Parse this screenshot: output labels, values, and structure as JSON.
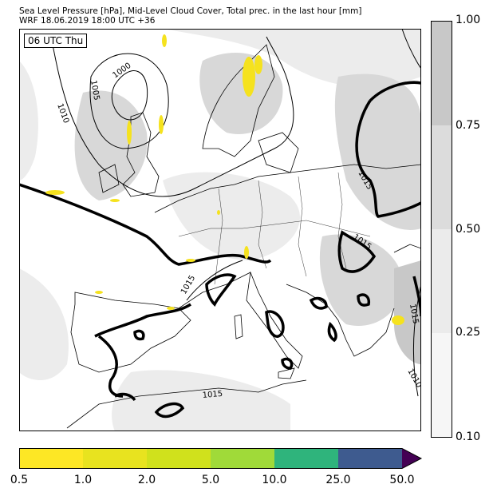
{
  "header": {
    "line1": "Sea Level Pressure [hPa], Mid-Level Cloud Cover, Total prec. in the last hour [mm]",
    "line2": "WRF 18.06.2019 18:00 UTC +36"
  },
  "map": {
    "time_label": "06 UTC Thu",
    "isobar_labels": [
      "1000",
      "1005",
      "1010",
      "1015",
      "1015",
      "1015",
      "1015",
      "1015",
      "1010"
    ],
    "colors": {
      "cloud_light": "#ececec",
      "cloud_mid": "#d8d8d8",
      "cloud_dark": "#c8c8c8",
      "precip": "#f5e21e",
      "isobar": "#000000",
      "coast": "#000000"
    }
  },
  "cloud_colorbar": {
    "ticks": [
      "1.00",
      "0.75",
      "0.50",
      "0.25",
      "0.10"
    ],
    "colors": [
      "#c8c8c8",
      "#dcdcdc",
      "#ebebeb",
      "#f6f6f6"
    ]
  },
  "precip_colorbar": {
    "ticks": [
      "0.5",
      "1.0",
      "2.0",
      "5.0",
      "10.0",
      "25.0",
      "50.0"
    ],
    "colors": [
      "#fde725",
      "#e8e31f",
      "#d0e11c",
      "#a0da39",
      "#2fb47c",
      "#3e5b8f",
      "#440154"
    ]
  }
}
